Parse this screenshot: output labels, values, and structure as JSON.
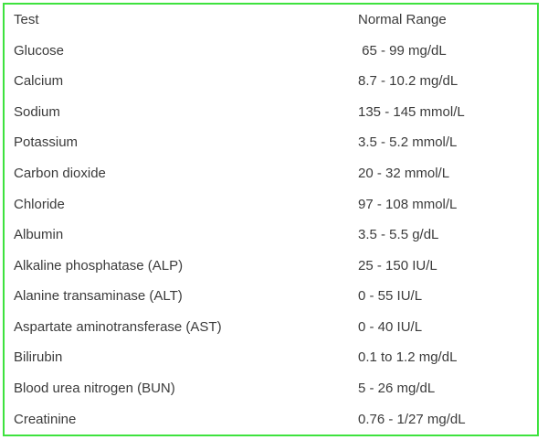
{
  "colors": {
    "border_green": "#3ee23e",
    "text": "#3b3b3b"
  },
  "table": {
    "headers": [
      "Test",
      "Normal Range"
    ],
    "rows": [
      {
        "test": "Glucose",
        "range": " 65 - 99 mg/dL"
      },
      {
        "test": "Calcium",
        "range": "8.7 - 10.2 mg/dL"
      },
      {
        "test": "Sodium",
        "range": "135 - 145 mmol/L"
      },
      {
        "test": "Potassium",
        "range": "3.5 - 5.2 mmol/L"
      },
      {
        "test": "Carbon dioxide",
        "range": "20 - 32 mmol/L"
      },
      {
        "test": "Chloride",
        "range": "97 - 108 mmol/L"
      },
      {
        "test": "Albumin",
        "range": "3.5 - 5.5 g/dL"
      },
      {
        "test": "Alkaline phosphatase (ALP)",
        "range": "25 - 150 IU/L"
      },
      {
        "test": "Alanine transaminase (ALT)",
        "range": "0 - 55 IU/L"
      },
      {
        "test": "Aspartate aminotransferase (AST)",
        "range": "0 - 40 IU/L"
      },
      {
        "test": "Bilirubin",
        "range": "0.1 to 1.2 mg/dL"
      },
      {
        "test": "Blood urea nitrogen (BUN)",
        "range": "5 - 26 mg/dL"
      },
      {
        "test": "Creatinine",
        "range": "0.76 - 1/27 mg/dL"
      }
    ]
  }
}
